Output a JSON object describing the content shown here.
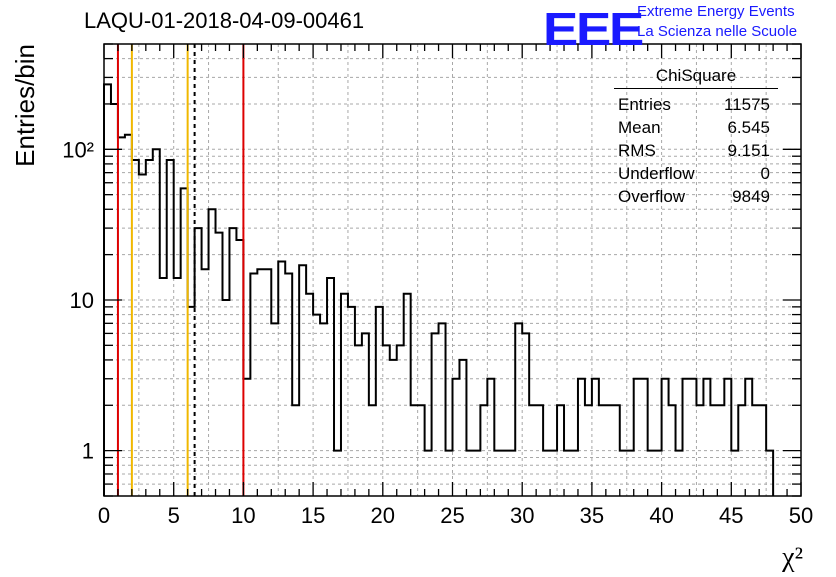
{
  "chart_data": {
    "type": "bar",
    "title": "LAQU-01-2018-04-09-00461",
    "xlabel": "χ²",
    "ylabel": "Entries/bin",
    "x_range": [
      0,
      50
    ],
    "y_range": [
      0.5,
      500
    ],
    "y_scale": "log",
    "grid": true,
    "bin_width": 0.5,
    "x_ticks": [
      "0",
      "5",
      "10",
      "15",
      "20",
      "25",
      "30",
      "35",
      "40",
      "45",
      "50"
    ],
    "y_ticks": [
      {
        "value": 1,
        "label": "1"
      },
      {
        "value": 10,
        "label": "10"
      },
      {
        "value": 100,
        "label": "10²"
      }
    ],
    "values": [
      270,
      200,
      120,
      125,
      85,
      68,
      85,
      100,
      14,
      85,
      14,
      55,
      9,
      30,
      16,
      40,
      28,
      10,
      30,
      25,
      3,
      15,
      16,
      16,
      7,
      18,
      15,
      2,
      17,
      11,
      8,
      7,
      14,
      1,
      11,
      9,
      5,
      6,
      2,
      9,
      5,
      4,
      5,
      11,
      2,
      2,
      1,
      6,
      7,
      1,
      3,
      4,
      1,
      1,
      2,
      3,
      1,
      1,
      1,
      7,
      6,
      2,
      2,
      1,
      1,
      2,
      1,
      1,
      3,
      2,
      3,
      2,
      2,
      2,
      1,
      1,
      3,
      3,
      1,
      1,
      3,
      2,
      1,
      3,
      3,
      2,
      3,
      2,
      2,
      3,
      1,
      2,
      3,
      2,
      2,
      1
    ],
    "vertical_lines": [
      {
        "x": 1,
        "color": "#dd0000",
        "style": "solid"
      },
      {
        "x": 2,
        "color": "#f0b800",
        "style": "solid"
      },
      {
        "x": 6,
        "color": "#f0b800",
        "style": "solid"
      },
      {
        "x": 6.5,
        "color": "#000000",
        "style": "dashed"
      },
      {
        "x": 10,
        "color": "#dd0000",
        "style": "solid"
      }
    ],
    "stats_box": {
      "title": "ChiSquare",
      "rows": [
        {
          "label": "Entries",
          "value": "11575"
        },
        {
          "label": "Mean",
          "value": "6.545"
        },
        {
          "label": "RMS",
          "value": "9.151"
        },
        {
          "label": "Underflow",
          "value": "0"
        },
        {
          "label": "Overflow",
          "value": "9849"
        }
      ],
      "placement": "top-right"
    }
  },
  "logo": {
    "mark": "EEE",
    "line1": "Extreme Energy Events",
    "line2": "La Scienza nelle Scuole"
  }
}
